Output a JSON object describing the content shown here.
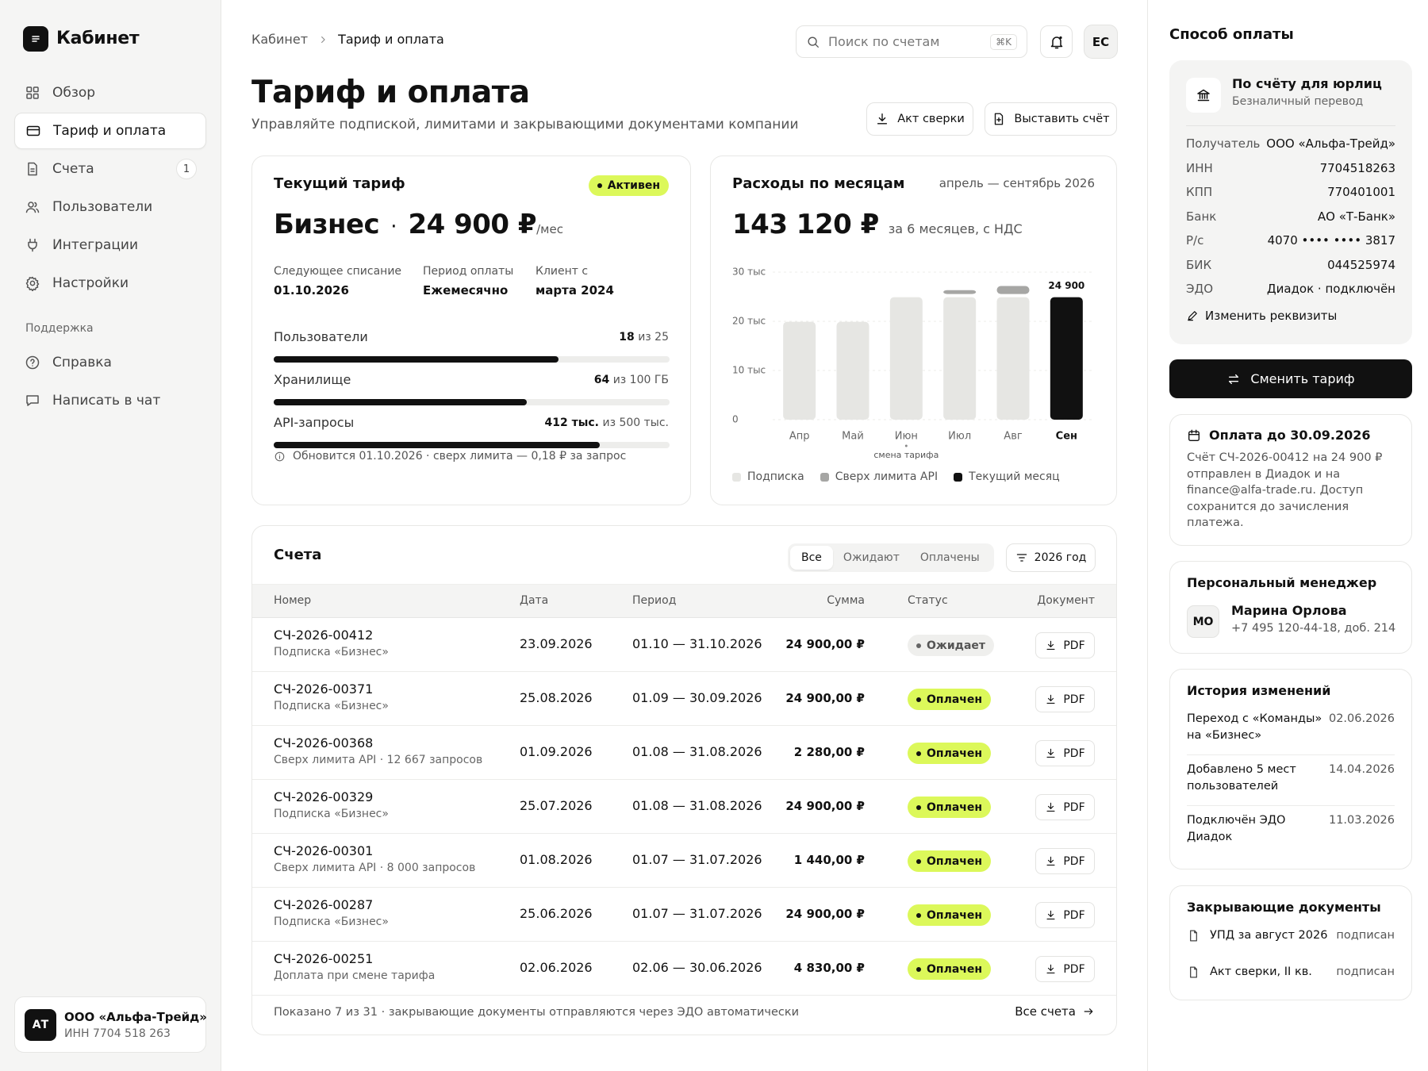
{
  "sidebar": {
    "brand": "Кабинет",
    "nav": [
      {
        "label": "Обзор"
      },
      {
        "label": "Тариф и оплата",
        "active": true
      },
      {
        "label": "Счета",
        "badge": 1
      },
      {
        "label": "Пользователи"
      },
      {
        "label": "Интеграции"
      },
      {
        "label": "Настройки"
      }
    ],
    "support_title": "Поддержка",
    "support": [
      {
        "label": "Справка"
      },
      {
        "label": "Написать в чат"
      }
    ],
    "company": {
      "initials": "АТ",
      "name": "ООО «Альфа-Трейд»",
      "inn": "ИНН 7704 518 263"
    }
  },
  "header": {
    "breadcrumb": [
      "Кабинет",
      "Тариф и оплата"
    ],
    "search_placeholder": "Поиск по счетам",
    "search_shortcut": "⌘K",
    "avatar": "ЕС",
    "title": "Тариф и оплата",
    "subtitle": "Управляйте подпиской, лимитами и закрывающими документами компании",
    "actions": [
      "Акт сверки",
      "Выставить счёт"
    ]
  },
  "plan": {
    "title": "Текущий тариф",
    "status": "Активен",
    "name": "Бизнес",
    "price": "24 900 ₽",
    "period": "/мес",
    "info": [
      {
        "label": "Следующее списание",
        "value": "01.10.2026"
      },
      {
        "label": "Период оплаты",
        "value": "Ежемесячно"
      },
      {
        "label": "Клиент с",
        "value": "марта 2024"
      }
    ],
    "limits": [
      {
        "label": "Пользователи",
        "used": 18,
        "limit": 25,
        "limit_label": "из 25"
      },
      {
        "label": "Хранилище",
        "used": 64,
        "limit": 100,
        "limit_label": "из 100 ГБ"
      },
      {
        "label": "API-запросы",
        "used": 412,
        "used_label": "412 тыс.",
        "limit": 500,
        "limit_label": "из 500 тыс."
      }
    ],
    "note": "Обновится 01.10.2026 · сверх лимита — 0,18 ₽ за запрос"
  },
  "chart_data": {
    "type": "bar",
    "title": "Расходы по месяцам",
    "subtitle": "апрель — сентябрь 2026",
    "total": "143 120 ₽",
    "total_note": "за 6 месяцев, с НДС",
    "categories": [
      "Апр",
      "Май",
      "Июн",
      "Июл",
      "Авг",
      "Сен"
    ],
    "series": [
      {
        "name": "Подписка",
        "color": "#e6e6e3",
        "values": [
          19.9,
          19.9,
          24.9,
          24.9,
          24.9,
          null
        ]
      },
      {
        "name": "Сверх лимита API",
        "color": "#a6a6a4",
        "values": [
          null,
          null,
          null,
          1.44,
          2.28,
          null
        ]
      },
      {
        "name": "Текущий месяц",
        "color": "#111111",
        "values": [
          null,
          null,
          null,
          null,
          null,
          24.9
        ],
        "value_labels": [
          null,
          null,
          null,
          null,
          null,
          "24 900"
        ]
      }
    ],
    "ylim": [
      0,
      30
    ],
    "yticks": [
      0,
      {
        "value": 10,
        "label": "10 тыс"
      },
      {
        "value": 20,
        "label": "20 тыс"
      },
      {
        "value": 30,
        "label": "30 тыс"
      }
    ],
    "grid": true,
    "annotations": [
      {
        "x": "Июн",
        "text": "смена тарифа"
      }
    ]
  },
  "invoices": {
    "title": "Счета",
    "tabs": [
      {
        "label": "Все",
        "active": true
      },
      {
        "label": "Ожидают"
      },
      {
        "label": "Оплачены"
      }
    ],
    "filter": "2026 год",
    "columns": [
      "Номер",
      "Дата",
      "Период",
      "Сумма",
      "Статус",
      "Документ"
    ],
    "rows": [
      {
        "number": "СЧ-2026-00412",
        "desc": "Подписка «Бизнес»",
        "date": "23.09.2026",
        "period": "01.10 — 31.10.2026",
        "amount": "24 900,00 ₽",
        "status": "Ожидает",
        "paid": false,
        "document": "PDF"
      },
      {
        "number": "СЧ-2026-00371",
        "desc": "Подписка «Бизнес»",
        "date": "25.08.2026",
        "period": "01.09 — 30.09.2026",
        "amount": "24 900,00 ₽",
        "status": "Оплачен",
        "paid": true,
        "document": "PDF"
      },
      {
        "number": "СЧ-2026-00368",
        "desc": "Сверх лимита API · 12 667 запросов",
        "date": "01.09.2026",
        "period": "01.08 — 31.08.2026",
        "amount": "2 280,00 ₽",
        "status": "Оплачен",
        "paid": true,
        "document": "PDF"
      },
      {
        "number": "СЧ-2026-00329",
        "desc": "Подписка «Бизнес»",
        "date": "25.07.2026",
        "period": "01.08 — 31.08.2026",
        "amount": "24 900,00 ₽",
        "status": "Оплачен",
        "paid": true,
        "document": "PDF"
      },
      {
        "number": "СЧ-2026-00301",
        "desc": "Сверх лимита API · 8 000 запросов",
        "date": "01.08.2026",
        "period": "01.07 — 31.07.2026",
        "amount": "1 440,00 ₽",
        "status": "Оплачен",
        "paid": true,
        "document": "PDF"
      },
      {
        "number": "СЧ-2026-00287",
        "desc": "Подписка «Бизнес»",
        "date": "25.06.2026",
        "period": "01.07 — 31.07.2026",
        "amount": "24 900,00 ₽",
        "status": "Оплачен",
        "paid": true,
        "document": "PDF"
      },
      {
        "number": "СЧ-2026-00251",
        "desc": "Доплата при смене тарифа",
        "date": "02.06.2026",
        "period": "02.06 — 30.06.2026",
        "amount": "4 830,00 ₽",
        "status": "Оплачен",
        "paid": true,
        "document": "PDF"
      }
    ],
    "footer": "Показано 7 из 31 · закрывающие документы отправляются через ЭДО автоматически",
    "all_link": "Все счета"
  },
  "payment": {
    "title": "Способ оплаты",
    "method": "По счёту для юрлиц",
    "method_sub": "Безналичный перевод",
    "details": [
      {
        "label": "Получатель",
        "value": "ООО «Альфа-Трейд»"
      },
      {
        "label": "ИНН",
        "value": "7704518263"
      },
      {
        "label": "КПП",
        "value": "770401001"
      },
      {
        "label": "Банк",
        "value": "АО «Т-Банк»"
      },
      {
        "label": "Р/с",
        "value": "4070 •••• •••• 3817"
      },
      {
        "label": "БИК",
        "value": "044525974"
      },
      {
        "label": "ЭДО",
        "value": "Диадок · подключён"
      }
    ],
    "edit": "Изменить реквизиты",
    "change_plan": "Сменить тариф"
  },
  "due": {
    "title": "Оплата до 30.09.2026",
    "text": "Счёт СЧ-2026-00412 на 24 900 ₽ отправлен в Диадок и на finance@alfa-trade.ru. Доступ сохранится до зачисления платежа."
  },
  "manager": {
    "title": "Персональный менеджер",
    "initials": "МО",
    "name": "Марина Орлова",
    "phone": "+7 495 120-44-18, доб. 214"
  },
  "history": {
    "title": "История изменений",
    "items": [
      {
        "text": "Переход с «Команды» на «Бизнес»",
        "date": "02.06.2026"
      },
      {
        "text": "Добавлено 5 мест пользователей",
        "date": "14.04.2026"
      },
      {
        "text": "Подключён ЭДО Диадок",
        "date": "11.03.2026"
      }
    ]
  },
  "documents": {
    "title": "Закрывающие документы",
    "items": [
      {
        "name": "УПД за август 2026",
        "status": "подписан"
      },
      {
        "name": "Акт сверки, II кв.",
        "status": "подписан"
      }
    ]
  }
}
